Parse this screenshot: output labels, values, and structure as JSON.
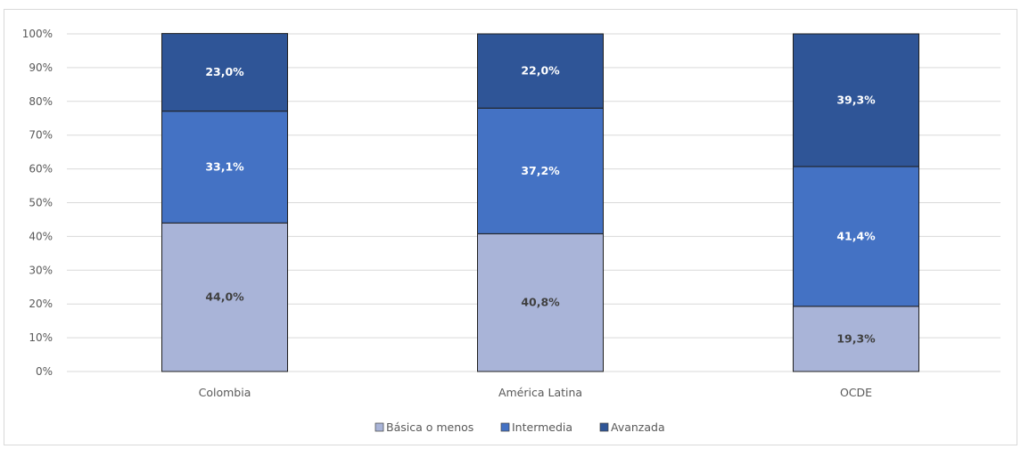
{
  "chart_data": {
    "type": "bar",
    "stacked": true,
    "categories": [
      "Colombia",
      "América Latina",
      "OCDE"
    ],
    "series": [
      {
        "name": "Básica o menos",
        "values": [
          44.0,
          40.8,
          19.3
        ],
        "labels": [
          "44,0%",
          "40,8%",
          "19,3%"
        ],
        "color": "#a9b4d8",
        "label_color": "#404040"
      },
      {
        "name": "Intermedia",
        "values": [
          33.1,
          37.2,
          41.4
        ],
        "labels": [
          "33,1%",
          "37,2%",
          "41,4%"
        ],
        "color": "#4472c4",
        "label_color": "#ffffff"
      },
      {
        "name": "Avanzada",
        "values": [
          23.0,
          22.0,
          39.3
        ],
        "labels": [
          "23,0%",
          "22,0%",
          "39,3%"
        ],
        "color": "#2f5597",
        "label_color": "#ffffff"
      }
    ],
    "y_ticks": [
      "0%",
      "10%",
      "20%",
      "30%",
      "40%",
      "50%",
      "60%",
      "70%",
      "80%",
      "90%",
      "100%"
    ],
    "ylim": [
      0,
      100
    ],
    "grid": true,
    "legend_position": "bottom",
    "title": "",
    "xlabel": "",
    "ylabel": ""
  }
}
